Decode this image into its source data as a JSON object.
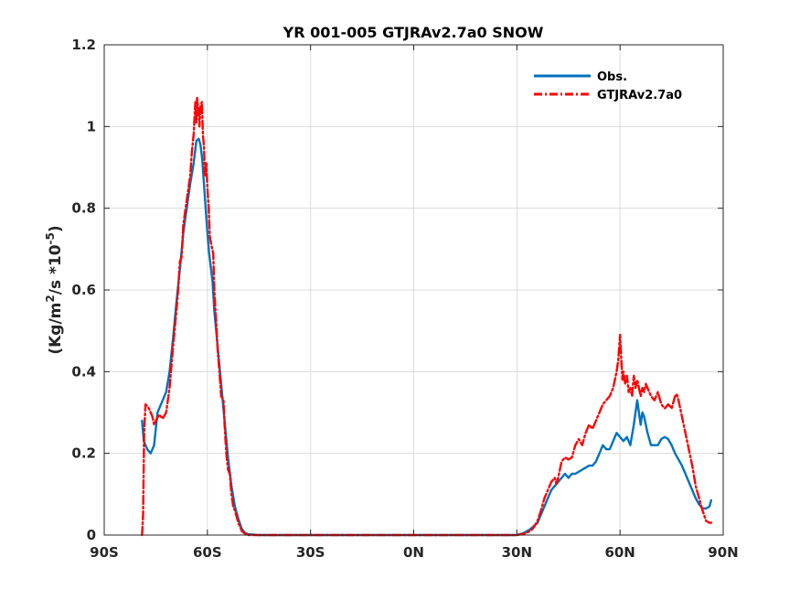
{
  "chart_data": {
    "type": "line",
    "title": "YR 001-005 GTJRAv2.7a0 SNOW",
    "xlabel": "",
    "ylabel_parts": [
      "(Kg/m",
      "2",
      "/s *10",
      "-5",
      ")"
    ],
    "xlim": [
      -90,
      90
    ],
    "ylim": [
      0,
      1.2
    ],
    "xticks": [
      -90,
      -60,
      -30,
      0,
      30,
      60,
      90
    ],
    "xtick_labels": [
      "90S",
      "60S",
      "30S",
      "0N",
      "30N",
      "60N",
      "90N"
    ],
    "yticks": [
      0,
      0.2,
      0.4,
      0.6,
      0.8,
      1.0,
      1.2
    ],
    "ytick_labels": [
      "0",
      "0.2",
      "0.4",
      "0.6",
      "0.8",
      "1",
      "1.2"
    ],
    "grid": true,
    "legend_position": "top-right",
    "series": [
      {
        "name": "Obs.",
        "color": "#0072bd",
        "style": "solid",
        "points": [
          [
            -79,
            0.28
          ],
          [
            -78.5,
            0.23
          ],
          [
            -77.5,
            0.21
          ],
          [
            -76.5,
            0.2
          ],
          [
            -75.5,
            0.22
          ],
          [
            -74.5,
            0.3
          ],
          [
            -73.5,
            0.32
          ],
          [
            -72,
            0.35
          ],
          [
            -71,
            0.4
          ],
          [
            -70,
            0.48
          ],
          [
            -69,
            0.57
          ],
          [
            -68,
            0.65
          ],
          [
            -67,
            0.74
          ],
          [
            -66,
            0.8
          ],
          [
            -65,
            0.86
          ],
          [
            -64,
            0.91
          ],
          [
            -63.2,
            0.965
          ],
          [
            -62.5,
            0.97
          ],
          [
            -62,
            0.955
          ],
          [
            -61.5,
            0.92
          ],
          [
            -61,
            0.86
          ],
          [
            -60.5,
            0.8
          ],
          [
            -60,
            0.74
          ],
          [
            -59.5,
            0.69
          ],
          [
            -58.5,
            0.62
          ],
          [
            -58,
            0.55
          ],
          [
            -57,
            0.46
          ],
          [
            -56,
            0.37
          ],
          [
            -55,
            0.28
          ],
          [
            -54,
            0.19
          ],
          [
            -53,
            0.12
          ],
          [
            -52,
            0.07
          ],
          [
            -51,
            0.04
          ],
          [
            -50,
            0.015
          ],
          [
            -49,
            0.005
          ],
          [
            -48,
            0.002
          ],
          [
            -45,
            0.0
          ],
          [
            -30,
            0.0
          ],
          [
            0,
            0.0
          ],
          [
            20,
            0.0
          ],
          [
            30,
            0.0
          ],
          [
            32,
            0.005
          ],
          [
            34,
            0.015
          ],
          [
            36,
            0.03
          ],
          [
            37,
            0.05
          ],
          [
            38,
            0.07
          ],
          [
            39,
            0.09
          ],
          [
            40,
            0.11
          ],
          [
            41,
            0.12
          ],
          [
            42,
            0.13
          ],
          [
            43,
            0.14
          ],
          [
            44,
            0.15
          ],
          [
            45,
            0.14
          ],
          [
            46,
            0.15
          ],
          [
            47,
            0.15
          ],
          [
            48,
            0.155
          ],
          [
            49,
            0.16
          ],
          [
            50,
            0.165
          ],
          [
            51,
            0.17
          ],
          [
            52,
            0.17
          ],
          [
            53,
            0.18
          ],
          [
            54,
            0.2
          ],
          [
            55,
            0.22
          ],
          [
            56,
            0.21
          ],
          [
            57,
            0.21
          ],
          [
            58,
            0.23
          ],
          [
            59,
            0.25
          ],
          [
            60,
            0.24
          ],
          [
            61,
            0.23
          ],
          [
            62,
            0.24
          ],
          [
            63,
            0.22
          ],
          [
            64,
            0.27
          ],
          [
            65,
            0.33
          ],
          [
            66,
            0.27
          ],
          [
            66.5,
            0.3
          ],
          [
            67,
            0.29
          ],
          [
            68,
            0.25
          ],
          [
            69,
            0.22
          ],
          [
            70,
            0.22
          ],
          [
            71,
            0.22
          ],
          [
            72,
            0.235
          ],
          [
            73,
            0.24
          ],
          [
            74,
            0.235
          ],
          [
            75,
            0.22
          ],
          [
            76,
            0.2
          ],
          [
            77,
            0.185
          ],
          [
            78,
            0.17
          ],
          [
            79,
            0.15
          ],
          [
            80,
            0.13
          ],
          [
            81,
            0.11
          ],
          [
            82,
            0.09
          ],
          [
            83,
            0.075
          ],
          [
            84,
            0.065
          ],
          [
            85,
            0.065
          ],
          [
            86,
            0.07
          ],
          [
            86.5,
            0.085
          ]
        ]
      },
      {
        "name": "GTJRAv2.7a0",
        "color": "#ff0000",
        "style": "dashdot",
        "points": [
          [
            -79,
            0.0
          ],
          [
            -78.7,
            0.05
          ],
          [
            -78.4,
            0.25
          ],
          [
            -78,
            0.32
          ],
          [
            -77,
            0.31
          ],
          [
            -76,
            0.29
          ],
          [
            -75.5,
            0.27
          ],
          [
            -75,
            0.28
          ],
          [
            -74,
            0.295
          ],
          [
            -73,
            0.285
          ],
          [
            -72,
            0.3
          ],
          [
            -71,
            0.36
          ],
          [
            -70,
            0.46
          ],
          [
            -69,
            0.55
          ],
          [
            -68.5,
            0.6
          ],
          [
            -68,
            0.67
          ],
          [
            -67.5,
            0.68
          ],
          [
            -67,
            0.76
          ],
          [
            -66,
            0.82
          ],
          [
            -65,
            0.88
          ],
          [
            -64.5,
            0.94
          ],
          [
            -64,
            0.98
          ],
          [
            -63.5,
            1.06
          ],
          [
            -63.2,
            1.01
          ],
          [
            -63,
            1.07
          ],
          [
            -62.6,
            1.04
          ],
          [
            -62.3,
            1.0
          ],
          [
            -62,
            1.05
          ],
          [
            -61.6,
            1.06
          ],
          [
            -61.3,
            0.98
          ],
          [
            -61,
            0.95
          ],
          [
            -60.7,
            0.88
          ],
          [
            -60.3,
            0.91
          ],
          [
            -60,
            0.85
          ],
          [
            -59.6,
            0.8
          ],
          [
            -59.3,
            0.73
          ],
          [
            -58.6,
            0.7
          ],
          [
            -58.3,
            0.69
          ],
          [
            -58,
            0.6
          ],
          [
            -57.5,
            0.53
          ],
          [
            -57,
            0.45
          ],
          [
            -56.5,
            0.4
          ],
          [
            -56,
            0.34
          ],
          [
            -55.3,
            0.33
          ],
          [
            -55,
            0.27
          ],
          [
            -54.5,
            0.2
          ],
          [
            -54,
            0.16
          ],
          [
            -53.5,
            0.15
          ],
          [
            -53,
            0.1
          ],
          [
            -52.5,
            0.07
          ],
          [
            -52,
            0.06
          ],
          [
            -51,
            0.03
          ],
          [
            -50,
            0.01
          ],
          [
            -49,
            0.003
          ],
          [
            -48,
            0.0
          ],
          [
            -30,
            0.0
          ],
          [
            0,
            0.0
          ],
          [
            20,
            0.0
          ],
          [
            30,
            0.0
          ],
          [
            32,
            0.003
          ],
          [
            34,
            0.01
          ],
          [
            35,
            0.02
          ],
          [
            36,
            0.035
          ],
          [
            37,
            0.06
          ],
          [
            38,
            0.09
          ],
          [
            39,
            0.11
          ],
          [
            40,
            0.13
          ],
          [
            41,
            0.14
          ],
          [
            41.5,
            0.125
          ],
          [
            42,
            0.14
          ],
          [
            43,
            0.18
          ],
          [
            44,
            0.19
          ],
          [
            45,
            0.185
          ],
          [
            46,
            0.19
          ],
          [
            47,
            0.22
          ],
          [
            48,
            0.235
          ],
          [
            49,
            0.22
          ],
          [
            50,
            0.25
          ],
          [
            51,
            0.27
          ],
          [
            52,
            0.26
          ],
          [
            53,
            0.28
          ],
          [
            54,
            0.3
          ],
          [
            55,
            0.32
          ],
          [
            56,
            0.33
          ],
          [
            57,
            0.34
          ],
          [
            58,
            0.36
          ],
          [
            59,
            0.4
          ],
          [
            59.5,
            0.43
          ],
          [
            60,
            0.49
          ],
          [
            60.3,
            0.44
          ],
          [
            60.7,
            0.38
          ],
          [
            61,
            0.4
          ],
          [
            61.5,
            0.37
          ],
          [
            62,
            0.39
          ],
          [
            62.5,
            0.35
          ],
          [
            63,
            0.36
          ],
          [
            63.5,
            0.34
          ],
          [
            64,
            0.39
          ],
          [
            64.5,
            0.36
          ],
          [
            65,
            0.38
          ],
          [
            65.5,
            0.36
          ],
          [
            66,
            0.34
          ],
          [
            66.5,
            0.36
          ],
          [
            67,
            0.35
          ],
          [
            67.5,
            0.37
          ],
          [
            68,
            0.36
          ],
          [
            69,
            0.34
          ],
          [
            70,
            0.33
          ],
          [
            71,
            0.35
          ],
          [
            72,
            0.32
          ],
          [
            73,
            0.31
          ],
          [
            74,
            0.32
          ],
          [
            75,
            0.31
          ],
          [
            76,
            0.34
          ],
          [
            76.5,
            0.345
          ],
          [
            77,
            0.33
          ],
          [
            78,
            0.29
          ],
          [
            79,
            0.25
          ],
          [
            80,
            0.21
          ],
          [
            81,
            0.17
          ],
          [
            82,
            0.12
          ],
          [
            83,
            0.09
          ],
          [
            84,
            0.06
          ],
          [
            85,
            0.035
          ],
          [
            86,
            0.03
          ],
          [
            86.5,
            0.03
          ]
        ]
      }
    ]
  }
}
